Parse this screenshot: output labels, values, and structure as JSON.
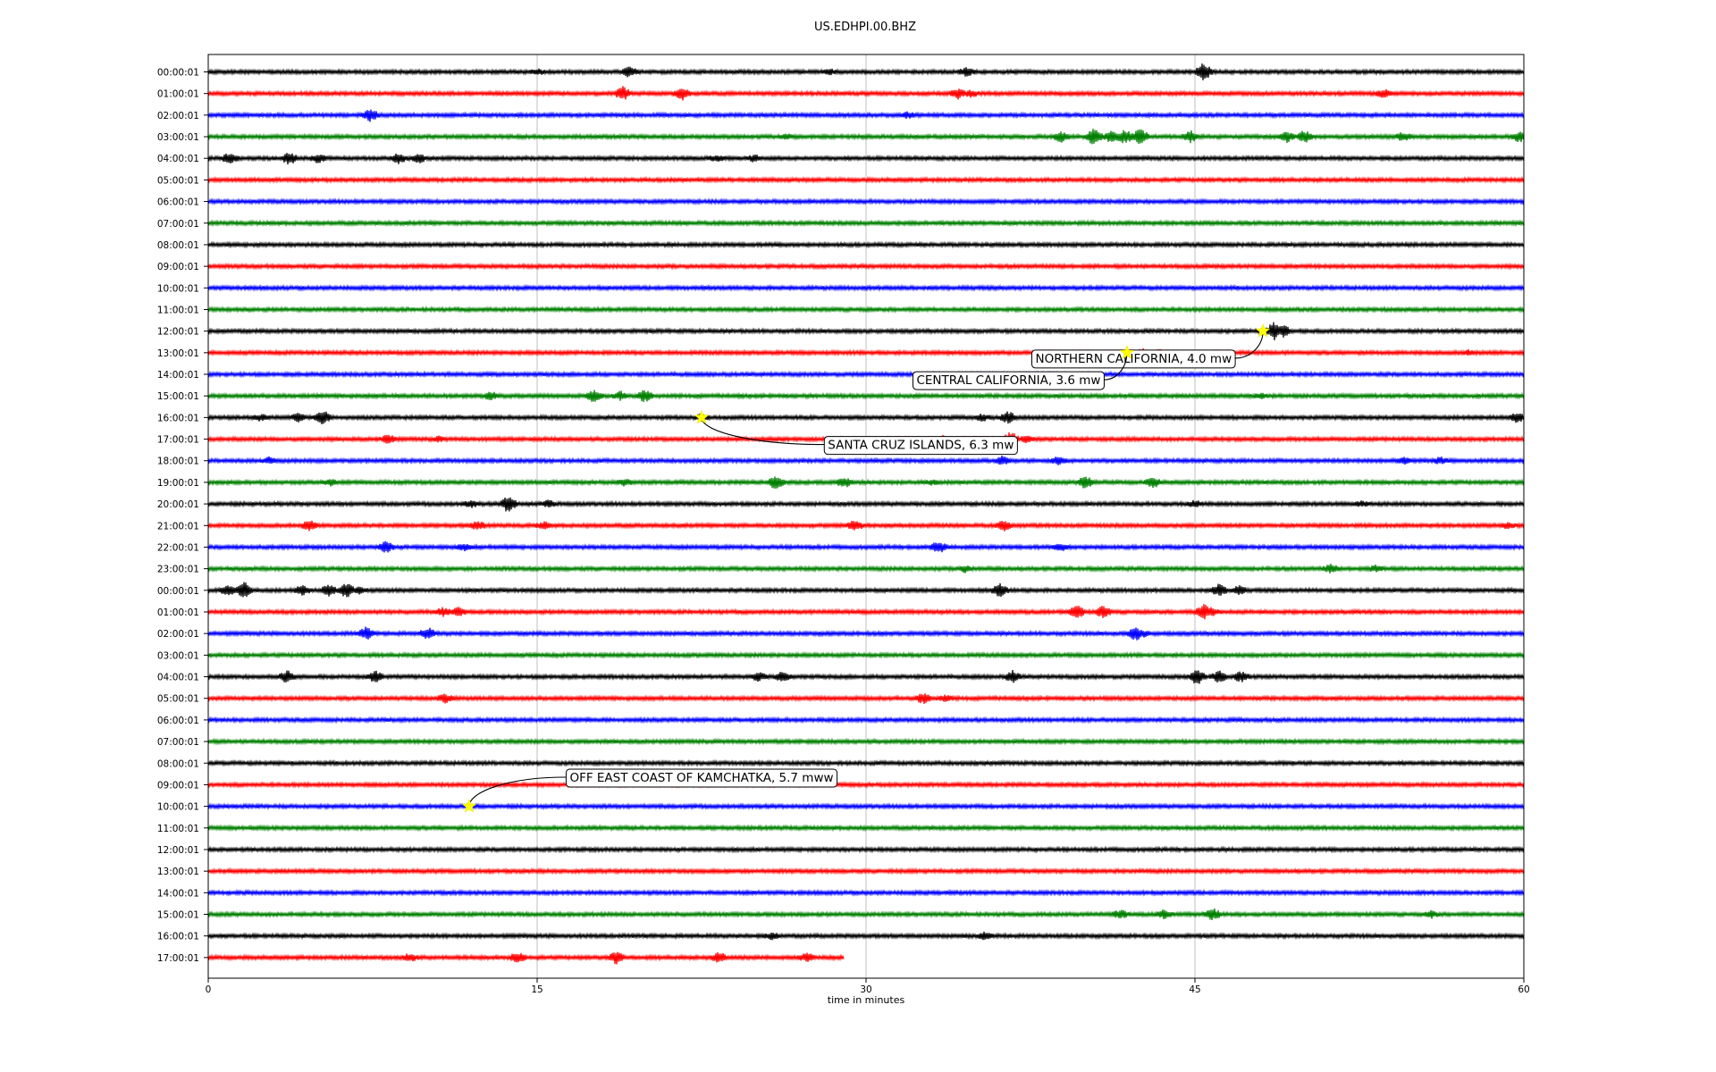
{
  "chart_data": {
    "type": "line",
    "title": "US.EDHPI.00.BHZ",
    "xlabel": "time in minutes",
    "xlim": [
      0,
      60
    ],
    "xticks": [
      "0",
      "15",
      "30",
      "45",
      "60"
    ],
    "grid": "vertical lines at 15, 30, 45",
    "colors": [
      "#000000",
      "#ff0000",
      "#0000ff",
      "#008000"
    ],
    "rows": [
      {
        "label": "00:00:01",
        "events": [
          [
            19.2,
            5
          ],
          [
            45.4,
            9
          ],
          [
            34.6,
            4
          ],
          [
            15,
            2.5
          ],
          [
            28.4,
            2
          ]
        ]
      },
      {
        "label": "01:00:01",
        "events": [
          [
            18.9,
            7
          ],
          [
            21.6,
            7
          ],
          [
            34.2,
            5
          ],
          [
            34.8,
            3
          ],
          [
            53.6,
            4
          ]
        ]
      },
      {
        "label": "02:00:01",
        "events": [
          [
            7.4,
            6
          ],
          [
            31.9,
            2.5
          ]
        ]
      },
      {
        "label": "03:00:01",
        "events": [
          [
            38.9,
            5
          ],
          [
            40.4,
            9
          ],
          [
            41.2,
            6
          ],
          [
            41.8,
            7
          ],
          [
            42.5,
            9
          ],
          [
            44.8,
            6
          ],
          [
            49.2,
            5
          ],
          [
            50.0,
            6
          ],
          [
            54.5,
            4
          ],
          [
            59.8,
            5
          ],
          [
            26.4,
            2
          ]
        ]
      },
      {
        "label": "04:00:01",
        "events": [
          [
            1.0,
            6
          ],
          [
            3.7,
            6
          ],
          [
            5.0,
            4
          ],
          [
            8.7,
            5
          ],
          [
            9.6,
            4
          ],
          [
            23.2,
            3
          ],
          [
            24.9,
            3
          ]
        ]
      },
      {
        "label": "05:00:01",
        "events": []
      },
      {
        "label": "06:00:01",
        "events": []
      },
      {
        "label": "07:00:01",
        "events": []
      },
      {
        "label": "08:00:01",
        "events": []
      },
      {
        "label": "09:00:01",
        "events": []
      },
      {
        "label": "10:00:01",
        "events": []
      },
      {
        "label": "11:00:01",
        "events": []
      },
      {
        "label": "12:00:01",
        "events": [
          [
            48.6,
            9
          ],
          [
            49.0,
            6
          ]
        ]
      },
      {
        "label": "13:00:01",
        "events": [
          [
            42.6,
            4
          ],
          [
            43.3,
            3
          ],
          [
            57.5,
            2
          ]
        ]
      },
      {
        "label": "14:00:01",
        "events": []
      },
      {
        "label": "15:00:01",
        "events": [
          [
            12.9,
            4
          ],
          [
            17.6,
            6
          ],
          [
            18.8,
            4
          ],
          [
            19.9,
            6
          ],
          [
            48.0,
            2
          ]
        ]
      },
      {
        "label": "16:00:01",
        "events": [
          [
            2.4,
            3
          ],
          [
            4.1,
            4
          ],
          [
            5.2,
            8
          ],
          [
            22.5,
            3
          ],
          [
            35.3,
            3
          ],
          [
            36.5,
            6
          ],
          [
            59.7,
            5
          ]
        ]
      },
      {
        "label": "17:00:01",
        "events": [
          [
            8.2,
            4
          ],
          [
            10.5,
            2
          ],
          [
            33.5,
            3
          ],
          [
            36.6,
            7
          ],
          [
            37.3,
            3
          ]
        ]
      },
      {
        "label": "18:00:01",
        "events": [
          [
            2.8,
            3
          ],
          [
            36.2,
            4
          ],
          [
            38.8,
            4
          ],
          [
            54.5,
            3
          ],
          [
            56.2,
            3
          ]
        ]
      },
      {
        "label": "19:00:01",
        "events": [
          [
            5.6,
            3
          ],
          [
            19.0,
            3
          ],
          [
            25.9,
            7
          ],
          [
            29.0,
            5
          ],
          [
            40.0,
            6
          ],
          [
            43.1,
            5
          ],
          [
            33.0,
            2
          ]
        ]
      },
      {
        "label": "20:00:01",
        "events": [
          [
            13.7,
            9
          ],
          [
            12.0,
            3
          ],
          [
            15.5,
            3
          ],
          [
            45.0,
            3
          ],
          [
            52.6,
            2
          ]
        ]
      },
      {
        "label": "21:00:01",
        "events": [
          [
            4.6,
            5
          ],
          [
            12.3,
            4
          ],
          [
            15.3,
            3
          ],
          [
            29.5,
            5
          ],
          [
            36.3,
            5
          ],
          [
            59.3,
            3
          ]
        ]
      },
      {
        "label": "22:00:01",
        "events": [
          [
            8.1,
            6
          ],
          [
            11.7,
            3
          ],
          [
            33.3,
            6
          ],
          [
            38.9,
            3
          ]
        ]
      },
      {
        "label": "23:00:01",
        "events": [
          [
            34.5,
            3
          ],
          [
            51.2,
            4
          ],
          [
            53.3,
            3
          ]
        ]
      },
      {
        "label": "00:00:01",
        "events": [
          [
            0.9,
            5
          ],
          [
            1.6,
            9
          ],
          [
            4.3,
            5
          ],
          [
            5.5,
            6
          ],
          [
            6.3,
            8
          ],
          [
            6.9,
            3
          ],
          [
            36.1,
            7
          ],
          [
            46.1,
            6
          ],
          [
            47.0,
            4
          ]
        ]
      },
      {
        "label": "01:00:01",
        "events": [
          [
            10.7,
            4
          ],
          [
            11.4,
            4
          ],
          [
            39.6,
            7
          ],
          [
            40.8,
            6
          ],
          [
            45.4,
            9
          ],
          [
            45.8,
            4
          ]
        ]
      },
      {
        "label": "02:00:01",
        "events": [
          [
            7.2,
            6
          ],
          [
            10.0,
            6
          ],
          [
            42.3,
            7
          ],
          [
            42.6,
            3
          ]
        ]
      },
      {
        "label": "03:00:01",
        "events": []
      },
      {
        "label": "04:00:01",
        "events": [
          [
            3.6,
            6
          ],
          [
            7.6,
            6
          ],
          [
            25.1,
            4
          ],
          [
            26.2,
            5
          ],
          [
            36.7,
            6
          ],
          [
            45.1,
            8
          ],
          [
            46.1,
            6
          ],
          [
            47.1,
            5
          ]
        ]
      },
      {
        "label": "05:00:01",
        "events": [
          [
            10.8,
            4
          ],
          [
            32.6,
            5
          ],
          [
            33.6,
            3
          ]
        ]
      },
      {
        "label": "06:00:01",
        "events": []
      },
      {
        "label": "07:00:01",
        "events": []
      },
      {
        "label": "08:00:01",
        "events": []
      },
      {
        "label": "09:00:01",
        "events": []
      },
      {
        "label": "10:00:01",
        "events": []
      },
      {
        "label": "11:00:01",
        "events": []
      },
      {
        "label": "12:00:01",
        "events": []
      },
      {
        "label": "13:00:01",
        "events": []
      },
      {
        "label": "14:00:01",
        "events": []
      },
      {
        "label": "15:00:01",
        "events": [
          [
            41.6,
            4
          ],
          [
            43.6,
            4
          ],
          [
            45.8,
            6
          ],
          [
            55.8,
            3
          ]
        ]
      },
      {
        "label": "16:00:01",
        "events": [
          [
            25.7,
            3
          ],
          [
            35.4,
            3
          ]
        ]
      },
      {
        "label": "17:00:01",
        "end": 29.0,
        "events": [
          [
            9.2,
            4
          ],
          [
            14.1,
            5
          ],
          [
            18.6,
            6
          ],
          [
            23.3,
            5
          ],
          [
            27.3,
            4
          ]
        ]
      }
    ],
    "annotations": [
      {
        "text": "NORTHERN CALIFORNIA, 4.0 mw",
        "row": 12,
        "minute": 48.1,
        "label_minute": 42.2,
        "label_row": 13.25
      },
      {
        "text": "CENTRAL CALIFORNIA, 3.6 mw",
        "row": 13,
        "minute": 41.9,
        "label_minute": 36.5,
        "label_row": 14.25
      },
      {
        "text": "SANTA CRUZ ISLANDS, 6.3 mw",
        "row": 16,
        "minute": 22.5,
        "label_minute": 32.5,
        "label_row": 17.25
      },
      {
        "text": "OFF EAST COAST OF KAMCHATKA, 5.7 mww",
        "row": 34,
        "minute": 11.9,
        "label_minute": 22.5,
        "label_row": 32.65
      }
    ]
  }
}
